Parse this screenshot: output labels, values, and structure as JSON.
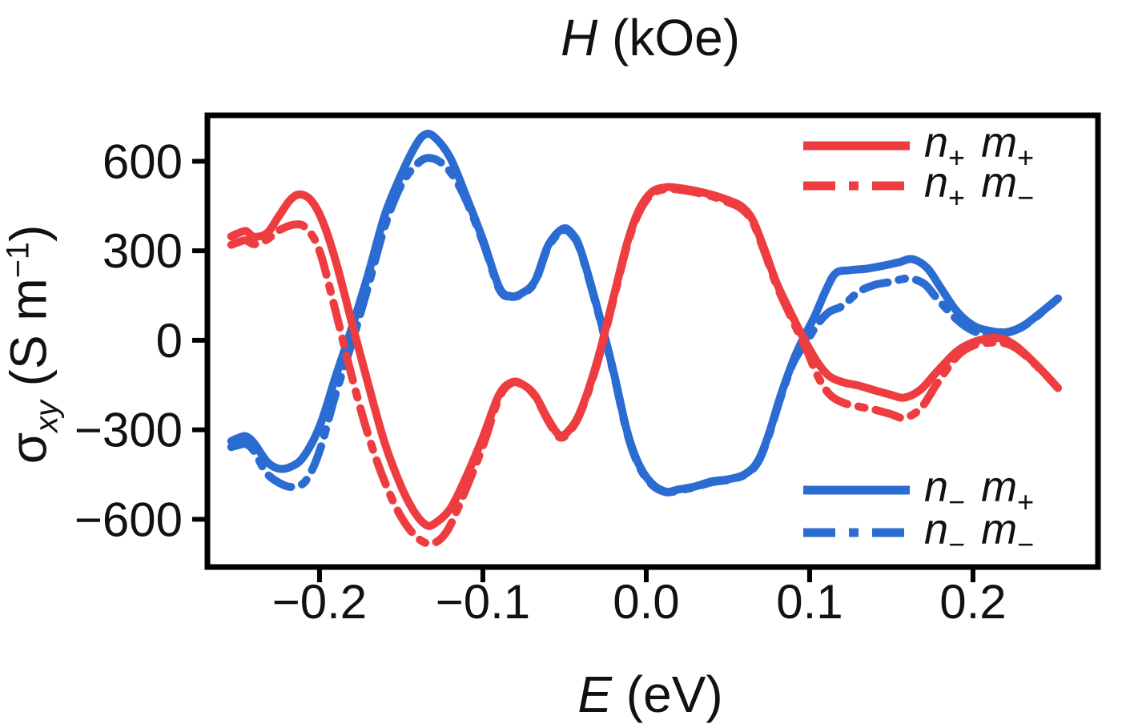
{
  "page": {
    "background": "#ffffff"
  },
  "chart": {
    "title": {
      "italic": "H",
      "rest": " (kOe)"
    },
    "xlabel": {
      "italic": "E",
      "rest": " (eV)"
    },
    "ylabel": {
      "sigma": "σ",
      "sub": "xy",
      "mid": " (S m",
      "sup": "−1",
      "end": ")"
    }
  },
  "legend": [
    {
      "name": "n+ m+",
      "n": "n",
      "n_sub": "+",
      "m": "m",
      "m_sub": "+",
      "style": "solid",
      "color": "#EE3D40"
    },
    {
      "name": "n+ m−",
      "n": "n",
      "n_sub": "+",
      "m": "m",
      "m_sub": "−",
      "style": "dashdot",
      "color": "#EE3D40"
    },
    {
      "name": "n− m+",
      "n": "n",
      "n_sub": "−",
      "m": "m",
      "m_sub": "+",
      "style": "solid",
      "color": "#2B6CD2"
    },
    {
      "name": "n− m−",
      "n": "n",
      "n_sub": "−",
      "m": "m",
      "m_sub": "−",
      "style": "dashdot",
      "color": "#2B6CD2"
    }
  ],
  "chart_data": {
    "type": "line",
    "title": "H (kOe)",
    "xlabel": "E (eV)",
    "ylabel": "σxy (S m−1)",
    "xlim": [
      -0.2686,
      0.2765
    ],
    "ylim": [
      -760,
      754
    ],
    "x_ticks": [
      -0.2,
      -0.1,
      0.0,
      0.1,
      0.2
    ],
    "x_tick_labels": [
      "−0.2",
      "−0.1",
      "0.0",
      "0.1",
      "0.2"
    ],
    "y_ticks": [
      600,
      300,
      0,
      -300,
      -600
    ],
    "y_tick_labels": [
      "600",
      "300",
      "0",
      "−300",
      "−600"
    ],
    "grid": false,
    "frame_color": "#000000",
    "legend_position": [
      "upper-right",
      "lower-right"
    ],
    "series": [
      {
        "name": "n− m−",
        "color": "#2B6CD2",
        "style": "dashdot",
        "points": [
          [
            -0.254,
            -358
          ],
          [
            -0.25,
            -352
          ],
          [
            -0.245,
            -348
          ],
          [
            -0.24,
            -372
          ],
          [
            -0.232,
            -448
          ],
          [
            -0.222,
            -485
          ],
          [
            -0.215,
            -490
          ],
          [
            -0.208,
            -468
          ],
          [
            -0.2,
            -372
          ],
          [
            -0.19,
            -178
          ],
          [
            -0.18,
            -5
          ],
          [
            -0.17,
            185
          ],
          [
            -0.16,
            382
          ],
          [
            -0.15,
            520
          ],
          [
            -0.14,
            592
          ],
          [
            -0.132,
            611
          ],
          [
            -0.122,
            578
          ],
          [
            -0.112,
            490
          ],
          [
            -0.1,
            330
          ],
          [
            -0.09,
            172
          ],
          [
            -0.083,
            146
          ],
          [
            -0.076,
            155
          ],
          [
            -0.068,
            196
          ],
          [
            -0.06,
            312
          ],
          [
            -0.051,
            368
          ],
          [
            -0.045,
            350
          ],
          [
            -0.04,
            296
          ],
          [
            -0.03,
            105
          ],
          [
            -0.02,
            -110
          ],
          [
            -0.012,
            -305
          ],
          [
            -0.005,
            -415
          ],
          [
            0.003,
            -482
          ],
          [
            0.012,
            -509
          ],
          [
            0.02,
            -503
          ],
          [
            0.03,
            -492
          ],
          [
            0.04,
            -476
          ],
          [
            0.05,
            -468
          ],
          [
            0.06,
            -452
          ],
          [
            0.068,
            -412
          ],
          [
            0.075,
            -320
          ],
          [
            0.082,
            -196
          ],
          [
            0.09,
            -75
          ],
          [
            0.098,
            -5
          ],
          [
            0.105,
            55
          ],
          [
            0.112,
            95
          ],
          [
            0.12,
            115
          ],
          [
            0.13,
            162
          ],
          [
            0.14,
            186
          ],
          [
            0.15,
            196
          ],
          [
            0.16,
            207
          ],
          [
            0.17,
            190
          ],
          [
            0.178,
            140
          ],
          [
            0.19,
            70
          ],
          [
            0.2,
            32
          ],
          [
            0.21,
            20
          ],
          [
            0.22,
            24
          ],
          [
            0.23,
            44
          ],
          [
            0.24,
            84
          ],
          [
            0.252,
            140
          ]
        ]
      },
      {
        "name": "n− m+",
        "color": "#2B6CD2",
        "style": "solid",
        "points": [
          [
            -0.254,
            -338
          ],
          [
            -0.25,
            -328
          ],
          [
            -0.245,
            -322
          ],
          [
            -0.24,
            -345
          ],
          [
            -0.232,
            -408
          ],
          [
            -0.225,
            -430
          ],
          [
            -0.218,
            -425
          ],
          [
            -0.21,
            -392
          ],
          [
            -0.2,
            -290
          ],
          [
            -0.19,
            -120
          ],
          [
            -0.18,
            45
          ],
          [
            -0.17,
            225
          ],
          [
            -0.16,
            420
          ],
          [
            -0.15,
            555
          ],
          [
            -0.142,
            645
          ],
          [
            -0.136,
            688
          ],
          [
            -0.13,
            683
          ],
          [
            -0.12,
            612
          ],
          [
            -0.11,
            480
          ],
          [
            -0.1,
            338
          ],
          [
            -0.09,
            178
          ],
          [
            -0.083,
            148
          ],
          [
            -0.076,
            158
          ],
          [
            -0.068,
            200
          ],
          [
            -0.06,
            318
          ],
          [
            -0.051,
            374
          ],
          [
            -0.045,
            355
          ],
          [
            -0.04,
            300
          ],
          [
            -0.03,
            110
          ],
          [
            -0.02,
            -105
          ],
          [
            -0.012,
            -300
          ],
          [
            -0.005,
            -410
          ],
          [
            0.003,
            -478
          ],
          [
            0.012,
            -507
          ],
          [
            0.02,
            -500
          ],
          [
            0.03,
            -490
          ],
          [
            0.04,
            -473
          ],
          [
            0.05,
            -466
          ],
          [
            0.06,
            -450
          ],
          [
            0.068,
            -408
          ],
          [
            0.075,
            -315
          ],
          [
            0.082,
            -190
          ],
          [
            0.09,
            -68
          ],
          [
            0.096,
            5
          ],
          [
            0.103,
            80
          ],
          [
            0.11,
            168
          ],
          [
            0.116,
            225
          ],
          [
            0.125,
            235
          ],
          [
            0.135,
            240
          ],
          [
            0.145,
            250
          ],
          [
            0.155,
            262
          ],
          [
            0.163,
            272
          ],
          [
            0.172,
            242
          ],
          [
            0.18,
            178
          ],
          [
            0.19,
            98
          ],
          [
            0.2,
            50
          ],
          [
            0.21,
            32
          ],
          [
            0.22,
            27
          ],
          [
            0.23,
            46
          ],
          [
            0.24,
            86
          ],
          [
            0.252,
            140
          ]
        ]
      },
      {
        "name": "n+ m−",
        "color": "#EE3D40",
        "style": "dashdot",
        "points": [
          [
            -0.254,
            320
          ],
          [
            -0.25,
            328
          ],
          [
            -0.245,
            335
          ],
          [
            -0.24,
            322
          ],
          [
            -0.232,
            338
          ],
          [
            -0.225,
            368
          ],
          [
            -0.215,
            388
          ],
          [
            -0.208,
            375
          ],
          [
            -0.2,
            300
          ],
          [
            -0.19,
            95
          ],
          [
            -0.18,
            -125
          ],
          [
            -0.17,
            -320
          ],
          [
            -0.16,
            -475
          ],
          [
            -0.15,
            -592
          ],
          [
            -0.14,
            -662
          ],
          [
            -0.131,
            -681
          ],
          [
            -0.122,
            -640
          ],
          [
            -0.112,
            -520
          ],
          [
            -0.1,
            -355
          ],
          [
            -0.09,
            -192
          ],
          [
            -0.082,
            -142
          ],
          [
            -0.075,
            -152
          ],
          [
            -0.068,
            -188
          ],
          [
            -0.06,
            -270
          ],
          [
            -0.053,
            -325
          ],
          [
            -0.047,
            -305
          ],
          [
            -0.04,
            -240
          ],
          [
            -0.03,
            -78
          ],
          [
            -0.02,
            138
          ],
          [
            -0.012,
            312
          ],
          [
            -0.005,
            422
          ],
          [
            0.003,
            488
          ],
          [
            0.012,
            507
          ],
          [
            0.02,
            505
          ],
          [
            0.03,
            496
          ],
          [
            0.04,
            483
          ],
          [
            0.05,
            463
          ],
          [
            0.058,
            442
          ],
          [
            0.065,
            398
          ],
          [
            0.072,
            302
          ],
          [
            0.08,
            182
          ],
          [
            0.09,
            62
          ],
          [
            0.098,
            -30
          ],
          [
            0.105,
            -120
          ],
          [
            0.112,
            -180
          ],
          [
            0.12,
            -208
          ],
          [
            0.13,
            -222
          ],
          [
            0.14,
            -233
          ],
          [
            0.15,
            -248
          ],
          [
            0.158,
            -260
          ],
          [
            0.168,
            -228
          ],
          [
            0.178,
            -145
          ],
          [
            0.19,
            -55
          ],
          [
            0.2,
            -18
          ],
          [
            0.21,
            -8
          ],
          [
            0.218,
            -8
          ],
          [
            0.226,
            -25
          ],
          [
            0.235,
            -65
          ],
          [
            0.244,
            -113
          ],
          [
            0.252,
            -160
          ]
        ]
      },
      {
        "name": "n+ m+",
        "color": "#EE3D40",
        "style": "solid",
        "points": [
          [
            -0.254,
            348
          ],
          [
            -0.25,
            358
          ],
          [
            -0.245,
            366
          ],
          [
            -0.24,
            347
          ],
          [
            -0.232,
            360
          ],
          [
            -0.225,
            415
          ],
          [
            -0.218,
            470
          ],
          [
            -0.212,
            489
          ],
          [
            -0.205,
            468
          ],
          [
            -0.198,
            398
          ],
          [
            -0.19,
            265
          ],
          [
            -0.18,
            55
          ],
          [
            -0.17,
            -150
          ],
          [
            -0.16,
            -345
          ],
          [
            -0.15,
            -490
          ],
          [
            -0.142,
            -575
          ],
          [
            -0.135,
            -618
          ],
          [
            -0.13,
            -616
          ],
          [
            -0.12,
            -565
          ],
          [
            -0.11,
            -455
          ],
          [
            -0.1,
            -325
          ],
          [
            -0.09,
            -182
          ],
          [
            -0.082,
            -140
          ],
          [
            -0.075,
            -150
          ],
          [
            -0.068,
            -185
          ],
          [
            -0.06,
            -265
          ],
          [
            -0.053,
            -318
          ],
          [
            -0.047,
            -300
          ],
          [
            -0.04,
            -235
          ],
          [
            -0.03,
            -70
          ],
          [
            -0.02,
            145
          ],
          [
            -0.012,
            320
          ],
          [
            -0.005,
            430
          ],
          [
            0.003,
            495
          ],
          [
            0.012,
            513
          ],
          [
            0.02,
            510
          ],
          [
            0.03,
            501
          ],
          [
            0.04,
            488
          ],
          [
            0.05,
            470
          ],
          [
            0.058,
            450
          ],
          [
            0.065,
            405
          ],
          [
            0.072,
            310
          ],
          [
            0.08,
            190
          ],
          [
            0.09,
            75
          ],
          [
            0.097,
            0
          ],
          [
            0.105,
            -75
          ],
          [
            0.112,
            -120
          ],
          [
            0.12,
            -140
          ],
          [
            0.13,
            -152
          ],
          [
            0.14,
            -168
          ],
          [
            0.15,
            -183
          ],
          [
            0.158,
            -192
          ],
          [
            0.168,
            -165
          ],
          [
            0.178,
            -105
          ],
          [
            0.19,
            -38
          ],
          [
            0.2,
            -7
          ],
          [
            0.21,
            7
          ],
          [
            0.218,
            5
          ],
          [
            0.226,
            -18
          ],
          [
            0.235,
            -62
          ],
          [
            0.244,
            -112
          ],
          [
            0.252,
            -160
          ]
        ]
      }
    ]
  }
}
